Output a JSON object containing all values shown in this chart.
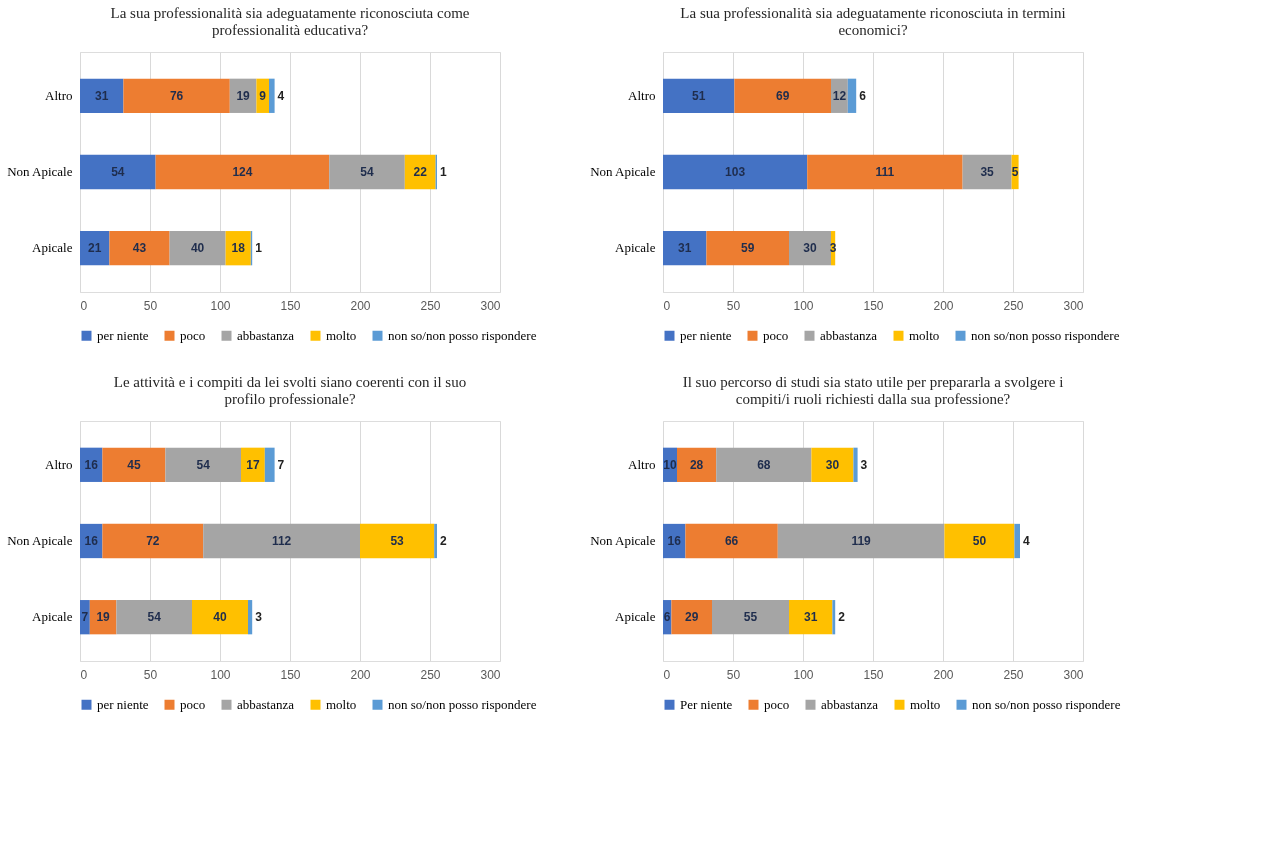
{
  "chart_data": [
    {
      "type": "bar",
      "orientation": "horizontal",
      "stacked": true,
      "title": "La sua professionalità sia adeguatamente riconosciuta come professionalità educativa?",
      "categories": [
        "Altro",
        "Non Apicale",
        "Apicale"
      ],
      "xlim": [
        0,
        300
      ],
      "xticks": [
        0,
        50,
        100,
        150,
        200,
        250,
        300
      ],
      "grid": "x",
      "legend": "bottom",
      "data_labels": true,
      "series": [
        {
          "name": "per niente",
          "color": "#4472c4",
          "values": [
            31,
            54,
            21
          ]
        },
        {
          "name": "poco",
          "color": "#ed7d31",
          "values": [
            76,
            124,
            43
          ]
        },
        {
          "name": "abbastanza",
          "color": "#a5a5a5",
          "values": [
            19,
            54,
            40
          ]
        },
        {
          "name": "molto",
          "color": "#ffc000",
          "values": [
            9,
            22,
            18
          ]
        },
        {
          "name": "non so/non posso rispondere",
          "color": "#5b9bd5",
          "values": [
            4,
            1,
            1
          ]
        }
      ]
    },
    {
      "type": "bar",
      "orientation": "horizontal",
      "stacked": true,
      "title": "La sua professionalità sia adeguatamente riconosciuta in termini economici?",
      "categories": [
        "Altro",
        "Non Apicale",
        "Apicale"
      ],
      "xlim": [
        0,
        300
      ],
      "xticks": [
        0,
        50,
        100,
        150,
        200,
        250,
        300
      ],
      "grid": "x",
      "legend": "bottom",
      "data_labels": true,
      "series": [
        {
          "name": "per niente",
          "color": "#4472c4",
          "values": [
            51,
            103,
            31
          ]
        },
        {
          "name": "poco",
          "color": "#ed7d31",
          "values": [
            69,
            111,
            59
          ]
        },
        {
          "name": "abbastanza",
          "color": "#a5a5a5",
          "values": [
            12,
            35,
            30
          ]
        },
        {
          "name": "molto",
          "color": "#ffc000",
          "values": [
            null,
            5,
            3
          ]
        },
        {
          "name": "non so/non posso rispondere",
          "color": "#5b9bd5",
          "values": [
            6,
            null,
            null
          ]
        }
      ]
    },
    {
      "type": "bar",
      "orientation": "horizontal",
      "stacked": true,
      "title": "Le attività e i compiti da lei svolti siano coerenti con il suo profilo professionale?",
      "categories": [
        "Altro",
        "Non Apicale",
        "Apicale"
      ],
      "xlim": [
        0,
        300
      ],
      "xticks": [
        0,
        50,
        100,
        150,
        200,
        250,
        300
      ],
      "grid": "x",
      "legend": "bottom",
      "data_labels": true,
      "series": [
        {
          "name": "per niente",
          "color": "#4472c4",
          "values": [
            16,
            16,
            7
          ]
        },
        {
          "name": "poco",
          "color": "#ed7d31",
          "values": [
            45,
            72,
            19
          ]
        },
        {
          "name": "abbastanza",
          "color": "#a5a5a5",
          "values": [
            54,
            112,
            54
          ]
        },
        {
          "name": "molto",
          "color": "#ffc000",
          "values": [
            17,
            53,
            40
          ]
        },
        {
          "name": "non so/non posso rispondere",
          "color": "#5b9bd5",
          "values": [
            7,
            2,
            3
          ]
        }
      ]
    },
    {
      "type": "bar",
      "orientation": "horizontal",
      "stacked": true,
      "title": "Il suo percorso di studi sia stato utile per prepararla a svolgere i compiti/i ruoli richiesti dalla sua professione?",
      "categories": [
        "Altro",
        "Non Apicale",
        "Apicale"
      ],
      "xlim": [
        0,
        300
      ],
      "xticks": [
        0,
        50,
        100,
        150,
        200,
        250,
        300
      ],
      "grid": "x",
      "legend": "bottom",
      "data_labels": true,
      "series": [
        {
          "name": "Per niente",
          "color": "#4472c4",
          "values": [
            10,
            16,
            6
          ]
        },
        {
          "name": "poco",
          "color": "#ed7d31",
          "values": [
            28,
            66,
            29
          ]
        },
        {
          "name": "abbastanza",
          "color": "#a5a5a5",
          "values": [
            68,
            119,
            55
          ]
        },
        {
          "name": "molto",
          "color": "#ffc000",
          "values": [
            30,
            50,
            31
          ]
        },
        {
          "name": "non so/non posso rispondere",
          "color": "#5b9bd5",
          "values": [
            3,
            4,
            2
          ]
        }
      ]
    }
  ]
}
